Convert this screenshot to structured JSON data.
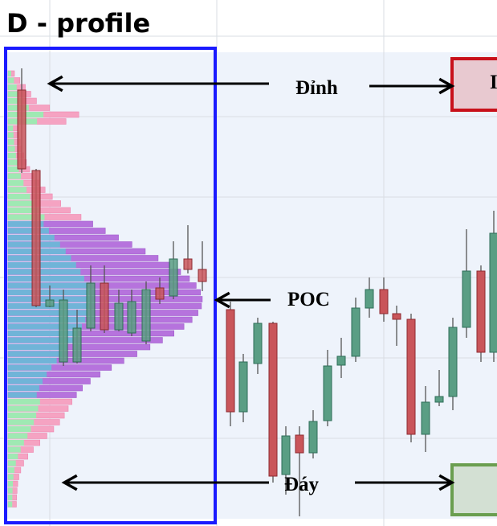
{
  "header": {
    "title": "D - profile"
  },
  "annotations": {
    "top": "Đỉnh",
    "poc": "POC",
    "bottom": "Đáy",
    "top_box": "I"
  }
}
